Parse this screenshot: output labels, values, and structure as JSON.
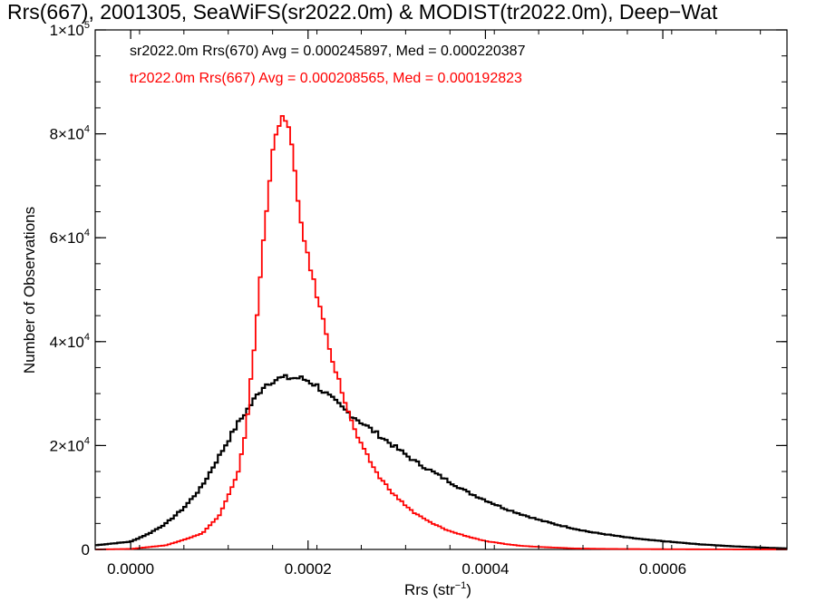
{
  "chart_data": {
    "type": "histogram-step",
    "title": "Rrs(667), 2001305, SeaWiFS(sr2022.0m) & MODIST(tr2022.0m), Deep−Wat",
    "xlabel_base": "Rrs (str",
    "xlabel_sup": "−1",
    "xlabel_close": ")",
    "ylabel": "Number of Observations",
    "xlim": [
      -4e-05,
      0.00074
    ],
    "ylim": [
      0,
      100000
    ],
    "grid": false,
    "legend_position": "top-left",
    "x_ticks": [
      {
        "value": 0.0,
        "label": "0.0000"
      },
      {
        "value": 0.0002,
        "label": "0.0002"
      },
      {
        "value": 0.0004,
        "label": "0.0004"
      },
      {
        "value": 0.0006,
        "label": "0.0006"
      }
    ],
    "y_ticks": [
      {
        "value": 0,
        "base": "0",
        "exp": ""
      },
      {
        "value": 20000,
        "base": "2×10",
        "exp": "4"
      },
      {
        "value": 40000,
        "base": "4×10",
        "exp": "4"
      },
      {
        "value": 60000,
        "base": "6×10",
        "exp": "4"
      },
      {
        "value": 80000,
        "base": "8×10",
        "exp": "4"
      },
      {
        "value": 100000,
        "base": "1×10",
        "exp": "5"
      }
    ],
    "series": [
      {
        "name": "sr2022.0m Rrs(670) Avg = 0.000245897, Med = 0.000220387",
        "color": "#000000",
        "x": [
          -4e-05,
          0.0,
          2e-05,
          4e-05,
          6e-05,
          8e-05,
          0.0001,
          0.00012,
          0.00014,
          0.00015,
          0.00016,
          0.00017,
          0.00018,
          0.00019,
          0.0002,
          0.00021,
          0.00022,
          0.00023,
          0.00024,
          0.00026,
          0.00028,
          0.0003,
          0.00032,
          0.00034,
          0.00036,
          0.00038,
          0.0004,
          0.00042,
          0.00044,
          0.00046,
          0.00048,
          0.0005,
          0.00052,
          0.00054,
          0.00056,
          0.00058,
          0.0006,
          0.00062,
          0.00064,
          0.00066,
          0.00068,
          0.0007,
          0.00072,
          0.00074
        ],
        "y": [
          800,
          1500,
          3000,
          5000,
          8000,
          12000,
          18000,
          24000,
          29000,
          31500,
          32500,
          33000,
          33000,
          33000,
          32500,
          31500,
          30000,
          28500,
          27000,
          24500,
          22000,
          19500,
          17000,
          15000,
          13000,
          11000,
          9500,
          8000,
          6800,
          5700,
          4800,
          4000,
          3300,
          2800,
          2300,
          1900,
          1600,
          1300,
          1000,
          800,
          600,
          450,
          300,
          200
        ]
      },
      {
        "name": "tr2022.0m Rrs(667) Avg = 0.000208565, Med = 0.000192823",
        "color": "#ff0000",
        "x": [
          -4e-05,
          0.0,
          4e-05,
          8e-05,
          0.0001,
          0.00012,
          0.00013,
          0.00014,
          0.00015,
          0.00016,
          0.00017,
          0.000175,
          0.00018,
          0.00019,
          0.0002,
          0.00021,
          0.00022,
          0.00023,
          0.00024,
          0.00025,
          0.00026,
          0.00028,
          0.0003,
          0.00032,
          0.00034,
          0.00036,
          0.00038,
          0.0004,
          0.00042,
          0.00044,
          0.00046,
          0.0005,
          0.00054,
          0.0006,
          0.00066,
          0.00074
        ],
        "y": [
          0,
          100,
          800,
          3000,
          6500,
          14000,
          23000,
          40000,
          60000,
          77000,
          83000,
          83000,
          80000,
          65000,
          56000,
          49000,
          42000,
          35000,
          29500,
          24000,
          20000,
          14000,
          10000,
          7000,
          5000,
          3500,
          2500,
          1600,
          1100,
          700,
          500,
          200,
          100,
          50,
          20,
          0
        ]
      }
    ]
  }
}
